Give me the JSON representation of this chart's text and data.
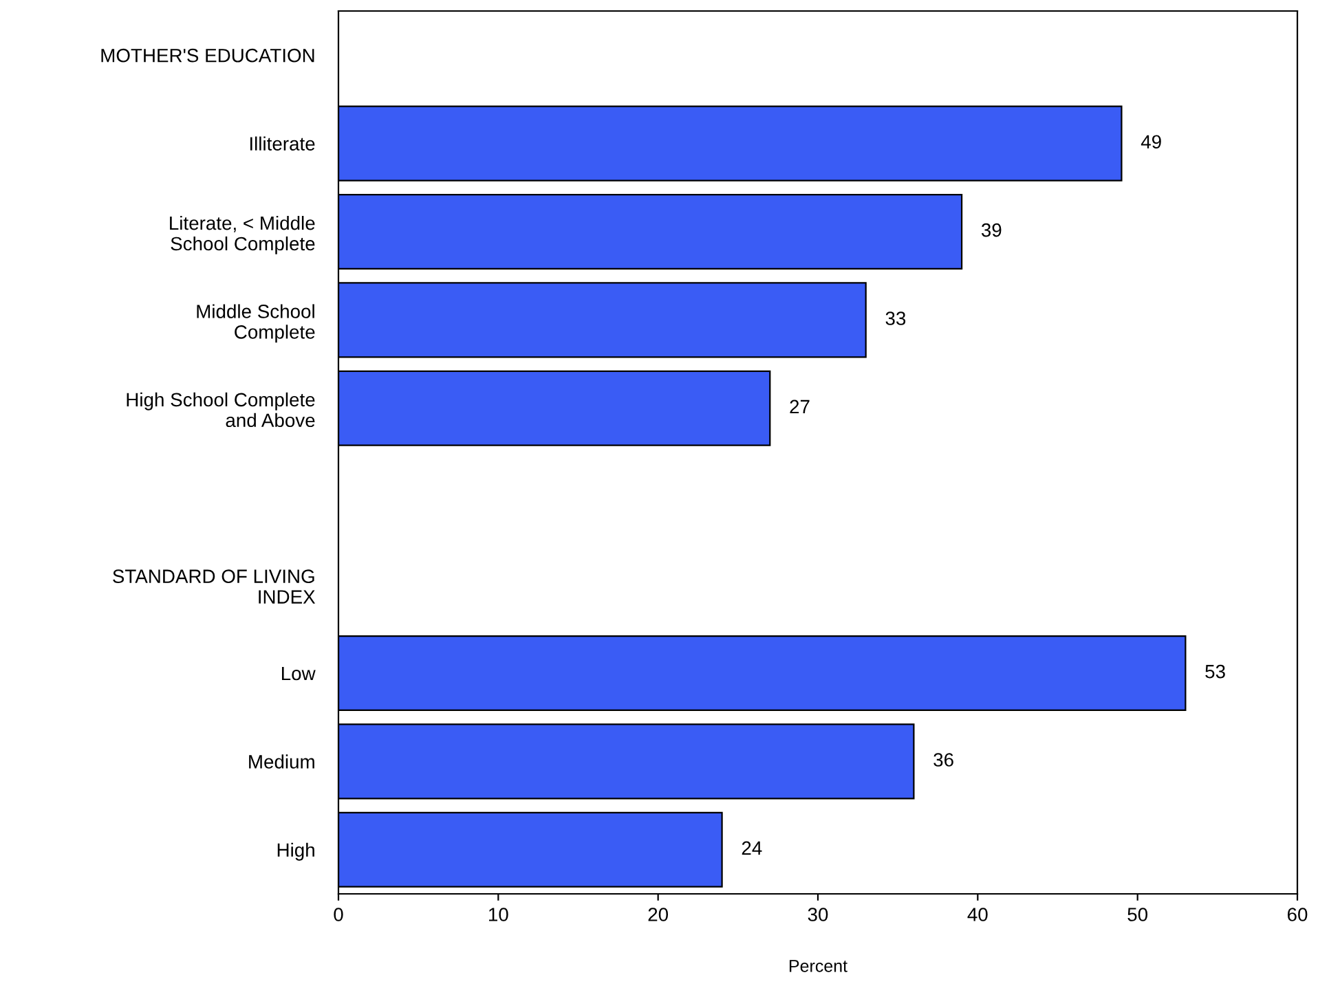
{
  "chart_data": {
    "type": "bar",
    "orientation": "horizontal",
    "xlabel": "Percent",
    "categories": [
      "MOTHER'S EDUCATION",
      "Illiterate",
      "Literate, < Middle\nSchool Complete",
      "Middle School\nComplete",
      "High School Complete\nand Above",
      null,
      "STANDARD OF LIVING\nINDEX",
      "Low",
      "Medium",
      "High"
    ],
    "values": [
      null,
      49,
      39,
      33,
      27,
      null,
      null,
      53,
      36,
      24
    ],
    "color": "#3a5cf5",
    "data_labels": true,
    "xlim": [
      0,
      60
    ],
    "xticks": [
      0,
      10,
      20,
      30,
      40,
      50,
      60
    ],
    "grid": false,
    "legend": false
  }
}
